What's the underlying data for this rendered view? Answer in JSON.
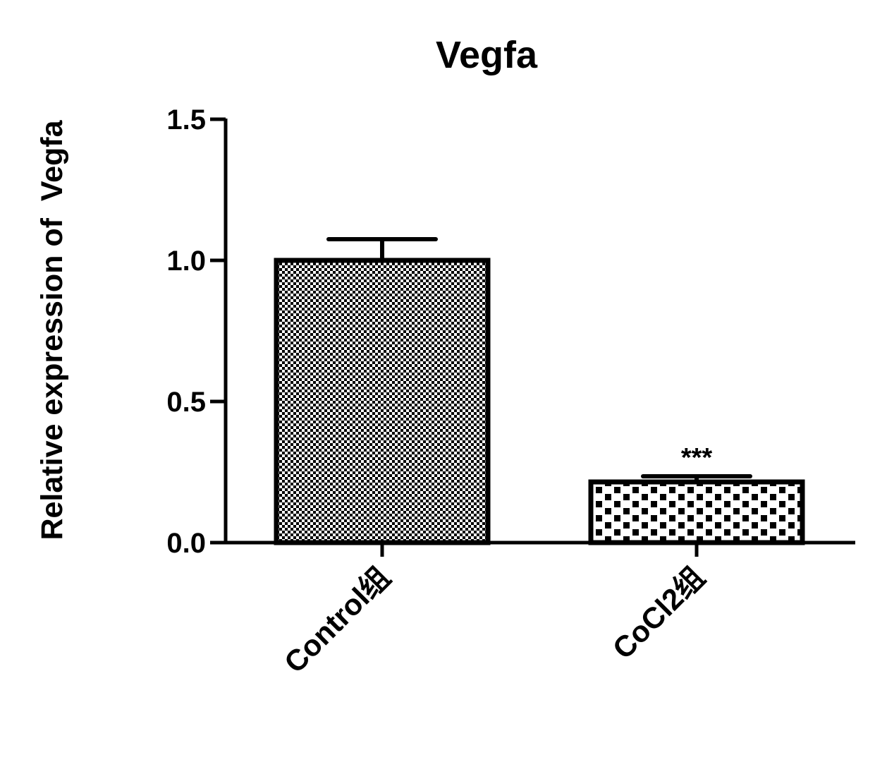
{
  "chart_data": {
    "type": "bar",
    "title": "Vegfa",
    "xlabel": "",
    "ylabel": "Relative expression of  Vegfa",
    "ylim": [
      0,
      1.5
    ],
    "yticks": [
      {
        "value": 0.0,
        "label": "0.0"
      },
      {
        "value": 0.5,
        "label": "0.5"
      },
      {
        "value": 1.0,
        "label": "1.0"
      },
      {
        "value": 1.5,
        "label": "1.5"
      }
    ],
    "categories": [
      "Control组",
      "CoCl2组"
    ],
    "values": [
      1.0,
      0.215
    ],
    "errors": [
      0.075,
      0.02
    ],
    "patterns": [
      "fine-checker",
      "coarse-checker"
    ],
    "annotations": [
      "",
      "***"
    ],
    "grid": false,
    "colors": {
      "stroke": "#000000",
      "fill_light": "#ffffff",
      "fill_dark": "#000000"
    }
  }
}
